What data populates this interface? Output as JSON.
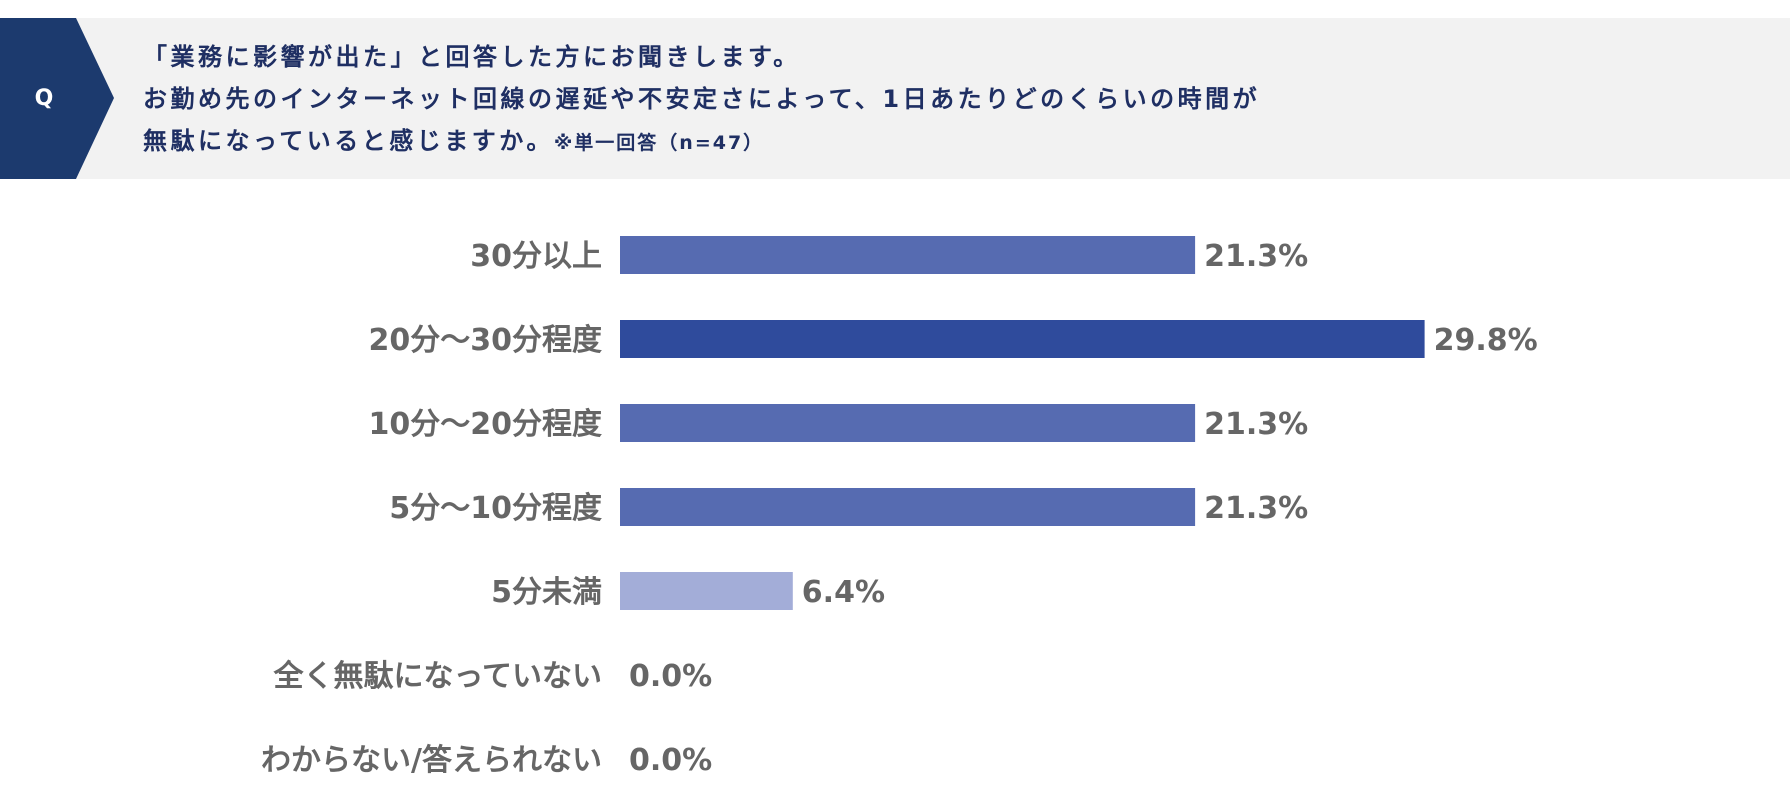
{
  "question": {
    "badge": "Q",
    "line1": "「業務に影響が出た」と回答した方にお聞きします。",
    "line2": "お勤め先のインターネット回線の遅延や不安定さによって、1日あたりどのくらいの時間が",
    "line3": "無駄になっていると感じますか。",
    "note": "※単一回答（n=47）"
  },
  "colors": {
    "header_bg": "#f2f2f2",
    "badge_bg": "#1c3a6e",
    "title_text": "#1f2f63",
    "label_text": "#666666",
    "bar_default": "#566bb1",
    "bar_highlight": "#2f4b9c",
    "bar_light": "#a3add8"
  },
  "chart_data": {
    "type": "bar",
    "orientation": "horizontal",
    "categories": [
      "30分以上",
      "20分〜30分程度",
      "10分〜20分程度",
      "5分〜10分程度",
      "5分未満",
      "全く無駄になっていない",
      "わからない/答えられない"
    ],
    "values": [
      21.3,
      29.8,
      21.3,
      21.3,
      6.4,
      0.0,
      0.0
    ],
    "value_labels": [
      "21.3%",
      "29.8%",
      "21.3%",
      "21.3%",
      "6.4%",
      "0.0%",
      "0.0%"
    ],
    "bar_colors": [
      "#566bb1",
      "#2f4b9c",
      "#566bb1",
      "#566bb1",
      "#a3add8",
      "#566bb1",
      "#566bb1"
    ],
    "unit": "%",
    "grid": false,
    "legend": false
  }
}
